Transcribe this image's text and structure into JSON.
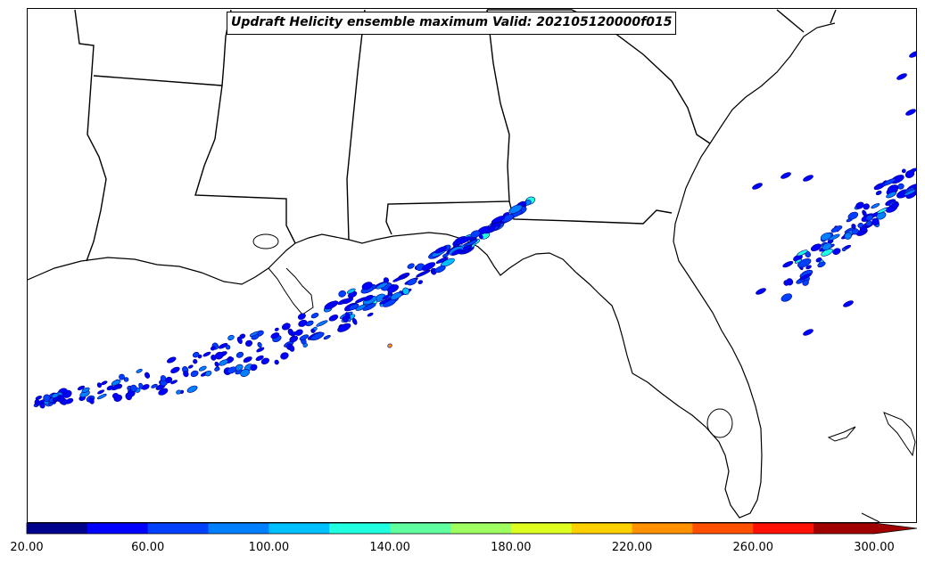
{
  "title": "Updraft Helicity ensemble maximum Valid: 202105120000f015",
  "colorbar": {
    "ticks": [
      "20.00",
      "60.00",
      "100.00",
      "140.00",
      "180.00",
      "220.00",
      "260.00",
      "300.00"
    ],
    "levels": [
      20,
      40,
      60,
      80,
      100,
      120,
      140,
      160,
      180,
      200,
      220,
      240,
      260,
      280,
      300
    ],
    "colors": [
      "#00008f",
      "#0000ff",
      "#0040ff",
      "#0080ff",
      "#00bfff",
      "#20ffdf",
      "#60ff9f",
      "#9fff60",
      "#dfff20",
      "#ffd000",
      "#ff9000",
      "#ff5000",
      "#ff1000",
      "#a00000"
    ],
    "extend": "max",
    "extend_color": "#a00000"
  },
  "map": {
    "region": "Gulf of Mexico / southeastern United States",
    "boundaries": [
      "coastlines",
      "state-borders"
    ],
    "field": "updraft-helicity-ensemble-maximum"
  }
}
